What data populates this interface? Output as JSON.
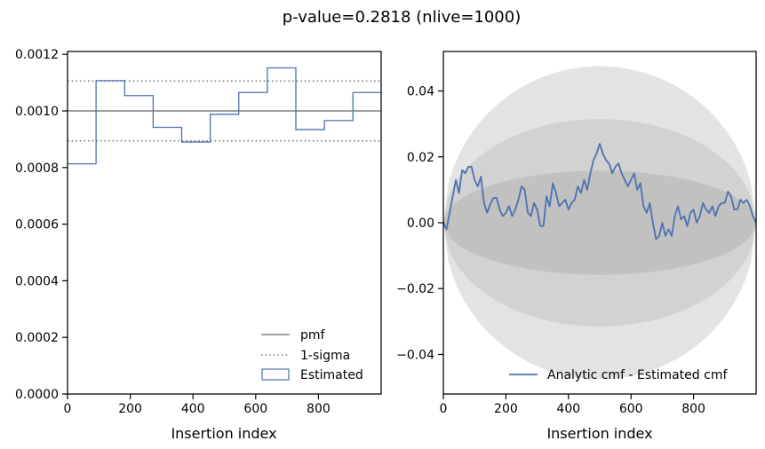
{
  "figure": {
    "suptitle": "p-value=0.2818 (nlive=1000)"
  },
  "colors": {
    "pmf": "#808080",
    "sigma": "#808080",
    "estimated": "#4c72b0",
    "band_outer": "#e3e3e3",
    "band_mid": "#d2d2d2",
    "band_inner": "#c1c1c1",
    "cmf_line": "#4c72b0"
  },
  "chart_data": [
    {
      "type": "histogram",
      "xlabel": "Insertion index",
      "ylabel": "",
      "xlim": [
        0,
        1000
      ],
      "ylim": [
        0,
        0.00121
      ],
      "x_ticks": [
        0,
        200,
        400,
        600,
        800
      ],
      "x_tick_labels": [
        "0",
        "200",
        "400",
        "600",
        "800"
      ],
      "y_ticks": [
        0,
        0.0002,
        0.0004,
        0.0006,
        0.0008,
        0.001,
        0.0012
      ],
      "y_tick_labels": [
        "0.0000",
        "0.0002",
        "0.0004",
        "0.0006",
        "0.0008",
        "0.0010",
        "0.0012"
      ],
      "reference_lines": [
        {
          "name": "pmf",
          "y": 0.001,
          "style": "solid"
        },
        {
          "name": "1-sigma",
          "y": 0.0011055,
          "style": "dotted"
        },
        {
          "name": "1-sigma",
          "y": 0.0008945,
          "style": "dotted"
        }
      ],
      "bin_edges": [
        0,
        91,
        182,
        273,
        364,
        455,
        546,
        637,
        728,
        819,
        910,
        1000
      ],
      "values": [
        0.000813,
        0.001107,
        0.001054,
        0.000942,
        0.00089,
        0.000988,
        0.001065,
        0.001152,
        0.000934,
        0.000966,
        0.001065
      ],
      "legend": {
        "position": "lower right",
        "entries": [
          {
            "label": "pmf",
            "style": "solid-line"
          },
          {
            "label": "1-sigma",
            "style": "dotted-line"
          },
          {
            "label": "Estimated",
            "style": "box"
          }
        ]
      }
    },
    {
      "type": "line",
      "xlabel": "Insertion index",
      "ylabel": "",
      "xlim": [
        0,
        1000
      ],
      "ylim": [
        -0.052,
        0.052
      ],
      "x_ticks": [
        0,
        200,
        400,
        600,
        800
      ],
      "x_tick_labels": [
        "0",
        "200",
        "400",
        "600",
        "800"
      ],
      "y_ticks": [
        -0.04,
        -0.02,
        0.0,
        0.02,
        0.04
      ],
      "y_tick_labels": [
        "−0.04",
        "−0.02",
        "0.00",
        "0.02",
        "0.04"
      ],
      "bands": [
        {
          "level": 3,
          "peak": 0.0475
        },
        {
          "level": 2,
          "peak": 0.0315
        },
        {
          "level": 1,
          "peak": 0.0158
        }
      ],
      "series": [
        {
          "name": "Analytic cmf - Estimated cmf",
          "x": [
            0,
            10,
            20,
            30,
            40,
            50,
            60,
            70,
            80,
            90,
            100,
            110,
            120,
            130,
            140,
            150,
            160,
            170,
            180,
            190,
            200,
            210,
            220,
            230,
            240,
            250,
            260,
            270,
            280,
            290,
            300,
            310,
            320,
            330,
            340,
            350,
            360,
            370,
            380,
            390,
            400,
            410,
            420,
            430,
            440,
            450,
            460,
            470,
            480,
            490,
            500,
            510,
            520,
            530,
            540,
            550,
            560,
            570,
            580,
            590,
            600,
            610,
            620,
            630,
            640,
            650,
            660,
            670,
            680,
            690,
            700,
            710,
            720,
            730,
            740,
            750,
            760,
            770,
            780,
            790,
            800,
            810,
            820,
            830,
            840,
            850,
            860,
            870,
            880,
            890,
            900,
            910,
            920,
            930,
            940,
            950,
            960,
            970,
            980,
            990,
            1000
          ],
          "values": [
            0.0,
            -0.002,
            0.003,
            0.008,
            0.013,
            0.009,
            0.016,
            0.015,
            0.017,
            0.017,
            0.013,
            0.011,
            0.014,
            0.006,
            0.003,
            0.0056,
            0.0075,
            0.0076,
            0.004,
            0.002,
            0.003,
            0.005,
            0.002,
            0.004,
            0.007,
            0.011,
            0.01,
            0.003,
            0.002,
            0.006,
            0.004,
            -0.001,
            -0.001,
            0.008,
            0.005,
            0.012,
            0.009,
            0.005,
            0.006,
            0.007,
            0.004,
            0.006,
            0.007,
            0.011,
            0.009,
            0.013,
            0.01,
            0.015,
            0.019,
            0.021,
            0.024,
            0.021,
            0.019,
            0.018,
            0.015,
            0.017,
            0.018,
            0.015,
            0.013,
            0.011,
            0.013,
            0.015,
            0.01,
            0.012,
            0.005,
            0.003,
            0.006,
            0.0,
            -0.005,
            -0.004,
            0.0,
            -0.004,
            -0.002,
            -0.004,
            0.002,
            0.005,
            0.001,
            0.002,
            -0.001,
            0.003,
            0.004,
            0.0,
            0.002,
            0.006,
            0.004,
            0.003,
            0.005,
            0.002,
            0.005,
            0.006,
            0.006,
            0.0095,
            0.008,
            0.004,
            0.004,
            0.007,
            0.006,
            0.007,
            0.005,
            0.002,
            0.0
          ]
        }
      ],
      "legend": {
        "position": "lower right",
        "entries": [
          {
            "label": "Analytic cmf - Estimated cmf",
            "style": "solid-line"
          }
        ]
      }
    }
  ]
}
